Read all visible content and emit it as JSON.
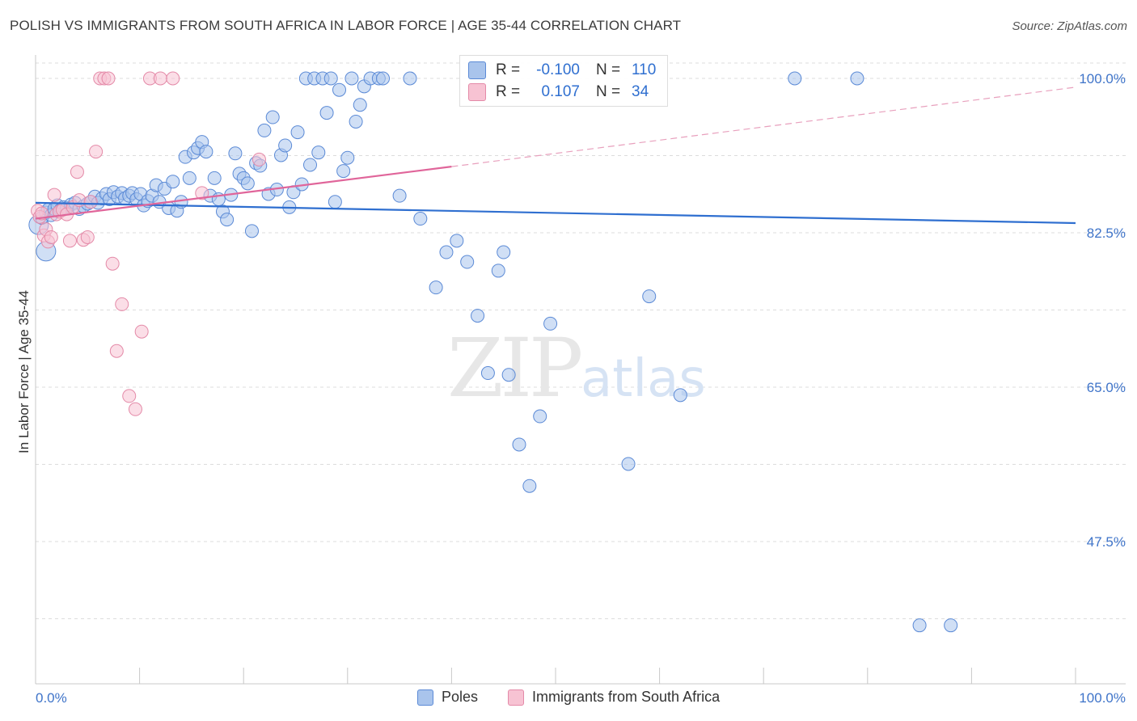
{
  "title": "POLISH VS IMMIGRANTS FROM SOUTH AFRICA IN LABOR FORCE | AGE 35-44 CORRELATION CHART",
  "source": "Source: ZipAtlas.com",
  "watermark": {
    "zip": "ZIP",
    "atlas": "atlas"
  },
  "stats": [
    {
      "r_label": "R =",
      "r": "-0.100",
      "n_label": "N =",
      "n": "110",
      "color": "#a9c4ec"
    },
    {
      "r_label": "R =",
      "r": "0.107",
      "n_label": "N =",
      "n": "34",
      "color": "#f7c3d3"
    }
  ],
  "legend": [
    {
      "label": "Poles",
      "color": "#a9c4ec"
    },
    {
      "label": "Immigrants from South Africa",
      "color": "#f7c3d3"
    }
  ],
  "chart_data": {
    "type": "scatter",
    "title": "POLISH VS IMMIGRANTS FROM SOUTH AFRICA IN LABOR FORCE | AGE 35-44 CORRELATION CHART",
    "xlabel": "",
    "ylabel": "In Labor Force | Age 35-44",
    "xlim": [
      0,
      100
    ],
    "ylim": [
      32,
      102
    ],
    "x_tick_labels": [
      "0.0%",
      "100.0%"
    ],
    "y_ticks": [
      47.5,
      65.0,
      82.5,
      100.0
    ],
    "y_tick_labels": [
      "47.5%",
      "65.0%",
      "82.5%",
      "100.0%"
    ],
    "grid": true,
    "series": [
      {
        "name": "Poles",
        "color": "#a9c4ec",
        "stroke": "#5b8ad6",
        "trend": {
          "x": [
            0,
            100
          ],
          "y": [
            85.9,
            83.6
          ]
        },
        "points": [
          [
            0.3,
            83.4
          ],
          [
            0.6,
            84.2
          ],
          [
            1.0,
            84.8
          ],
          [
            1.2,
            85.1
          ],
          [
            1.5,
            84.5
          ],
          [
            1.8,
            85.2
          ],
          [
            2.1,
            85.6
          ],
          [
            2.4,
            85.1
          ],
          [
            2.7,
            85.4
          ],
          [
            3.0,
            85.3
          ],
          [
            3.4,
            85.7
          ],
          [
            3.8,
            85.9
          ],
          [
            4.2,
            85.2
          ],
          [
            4.6,
            85.5
          ],
          [
            5.0,
            85.8
          ],
          [
            5.3,
            86.0
          ],
          [
            5.7,
            86.6
          ],
          [
            6.0,
            85.9
          ],
          [
            6.4,
            86.4
          ],
          [
            6.8,
            86.9
          ],
          [
            7.1,
            86.3
          ],
          [
            7.5,
            87.1
          ],
          [
            7.9,
            86.6
          ],
          [
            8.3,
            87.0
          ],
          [
            8.6,
            86.4
          ],
          [
            9.0,
            86.7
          ],
          [
            9.3,
            87.0
          ],
          [
            9.7,
            86.3
          ],
          [
            10.1,
            86.9
          ],
          [
            10.4,
            85.6
          ],
          [
            10.8,
            86.1
          ],
          [
            11.2,
            86.7
          ],
          [
            11.6,
            87.9
          ],
          [
            11.9,
            86.0
          ],
          [
            12.4,
            87.5
          ],
          [
            12.8,
            85.3
          ],
          [
            13.2,
            88.3
          ],
          [
            13.6,
            85.0
          ],
          [
            14.0,
            86.0
          ],
          [
            14.4,
            91.1
          ],
          [
            14.8,
            88.7
          ],
          [
            15.2,
            91.6
          ],
          [
            15.6,
            92.1
          ],
          [
            16.0,
            92.8
          ],
          [
            16.4,
            91.7
          ],
          [
            16.8,
            86.7
          ],
          [
            17.2,
            88.7
          ],
          [
            17.6,
            86.3
          ],
          [
            18.0,
            84.9
          ],
          [
            18.4,
            84.0
          ],
          [
            18.8,
            86.8
          ],
          [
            19.2,
            91.5
          ],
          [
            19.6,
            89.2
          ],
          [
            20.0,
            88.7
          ],
          [
            20.4,
            88.1
          ],
          [
            20.8,
            82.7
          ],
          [
            21.2,
            90.4
          ],
          [
            21.6,
            90.1
          ],
          [
            22.0,
            94.1
          ],
          [
            22.4,
            86.9
          ],
          [
            22.8,
            95.6
          ],
          [
            23.2,
            87.4
          ],
          [
            23.6,
            91.3
          ],
          [
            24.0,
            92.4
          ],
          [
            24.4,
            85.4
          ],
          [
            24.8,
            87.1
          ],
          [
            25.2,
            93.9
          ],
          [
            25.6,
            88.0
          ],
          [
            26.0,
            100.0
          ],
          [
            26.4,
            90.2
          ],
          [
            26.8,
            100.0
          ],
          [
            27.2,
            91.6
          ],
          [
            27.6,
            100.0
          ],
          [
            28.0,
            96.1
          ],
          [
            28.4,
            100.0
          ],
          [
            28.8,
            86.0
          ],
          [
            29.2,
            98.7
          ],
          [
            29.6,
            89.5
          ],
          [
            30.0,
            91.0
          ],
          [
            30.4,
            100.0
          ],
          [
            30.8,
            95.1
          ],
          [
            31.2,
            97.0
          ],
          [
            31.6,
            99.1
          ],
          [
            32.2,
            100.0
          ],
          [
            33.0,
            100.0
          ],
          [
            33.4,
            100.0
          ],
          [
            35.0,
            86.7
          ],
          [
            36.0,
            100.0
          ],
          [
            37.0,
            84.1
          ],
          [
            38.5,
            76.3
          ],
          [
            39.5,
            80.3
          ],
          [
            40.5,
            81.6
          ],
          [
            41.5,
            79.2
          ],
          [
            42.5,
            73.1
          ],
          [
            43.5,
            66.6
          ],
          [
            44.5,
            78.2
          ],
          [
            45.0,
            80.3
          ],
          [
            45.5,
            66.4
          ],
          [
            46.5,
            58.5
          ],
          [
            47.5,
            53.8
          ],
          [
            48.5,
            61.7
          ],
          [
            49.5,
            72.2
          ],
          [
            57.0,
            56.3
          ],
          [
            59.0,
            75.3
          ],
          [
            62.0,
            64.1
          ],
          [
            73.0,
            100.0
          ],
          [
            79.0,
            100.0
          ],
          [
            85.0,
            38.0
          ],
          [
            88.0,
            38.0
          ],
          [
            1.0,
            80.4
          ]
        ]
      },
      {
        "name": "Immigrants from South Africa",
        "color": "#f7c3d3",
        "stroke": "#e48aa8",
        "trend": {
          "x": [
            0,
            40
          ],
          "y": [
            84.1,
            90.0
          ]
        },
        "trend_dashed": {
          "x": [
            40,
            100
          ],
          "y": [
            90.0,
            99.0
          ]
        },
        "points": [
          [
            0.2,
            85.0
          ],
          [
            0.4,
            84.3
          ],
          [
            0.6,
            84.7
          ],
          [
            0.8,
            82.2
          ],
          [
            1.0,
            82.9
          ],
          [
            1.2,
            81.5
          ],
          [
            1.5,
            82.0
          ],
          [
            1.8,
            86.8
          ],
          [
            2.0,
            84.6
          ],
          [
            2.3,
            84.9
          ],
          [
            2.6,
            85.1
          ],
          [
            3.0,
            84.6
          ],
          [
            3.3,
            81.6
          ],
          [
            3.6,
            85.4
          ],
          [
            4.0,
            89.4
          ],
          [
            4.2,
            86.2
          ],
          [
            4.6,
            81.7
          ],
          [
            5.0,
            82.0
          ],
          [
            5.3,
            86.0
          ],
          [
            5.8,
            91.7
          ],
          [
            6.2,
            100.0
          ],
          [
            6.6,
            100.0
          ],
          [
            7.0,
            100.0
          ],
          [
            7.4,
            79.0
          ],
          [
            7.8,
            69.1
          ],
          [
            8.3,
            74.4
          ],
          [
            9.0,
            64.0
          ],
          [
            9.6,
            62.5
          ],
          [
            10.2,
            71.3
          ],
          [
            11.0,
            100.0
          ],
          [
            12.0,
            100.0
          ],
          [
            13.2,
            100.0
          ],
          [
            16.0,
            87.0
          ],
          [
            21.5,
            90.8
          ]
        ]
      }
    ]
  }
}
